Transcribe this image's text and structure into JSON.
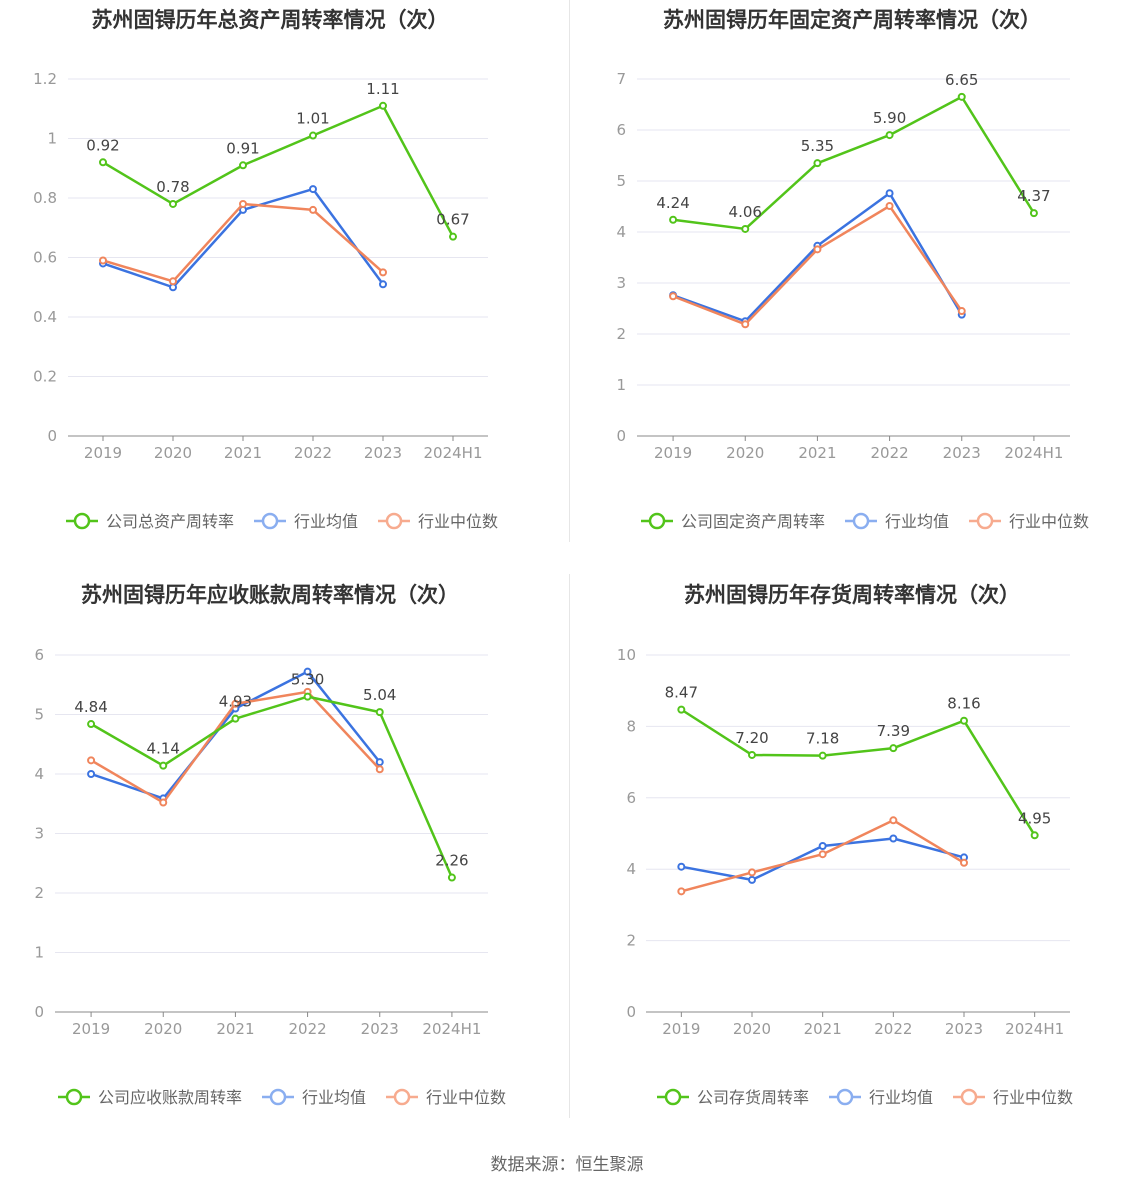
{
  "source": "数据来源：恒生聚源",
  "colors": {
    "company": "#52c41a",
    "industry_avg": "#3b73e0",
    "industry_median": "#f0855c",
    "legend_avg": "#8aaef0",
    "legend_median": "#f7ab8f"
  },
  "chart_data": [
    {
      "type": "line",
      "title": "苏州固锝历年总资产周转率情况（次）",
      "categories": [
        "2019",
        "2020",
        "2021",
        "2022",
        "2023",
        "2024H1"
      ],
      "ylim": [
        0,
        1.2
      ],
      "yticks": [
        "0",
        "0.2",
        "0.4",
        "0.6",
        "0.8",
        "1",
        "1.2"
      ],
      "ytick_values": [
        0,
        0.2,
        0.4,
        0.6,
        0.8,
        1,
        1.2
      ],
      "grid": true,
      "legend": "bottom",
      "series": [
        {
          "name": "公司总资产周转率",
          "role": "company",
          "values": [
            0.92,
            0.78,
            0.91,
            1.01,
            1.11,
            0.67
          ],
          "labels": [
            "0.92",
            "0.78",
            "0.91",
            "1.01",
            "1.11",
            "0.67"
          ]
        },
        {
          "name": "行业均值",
          "role": "avg",
          "values": [
            0.58,
            0.5,
            0.76,
            0.83,
            0.51,
            null
          ]
        },
        {
          "name": "行业中位数",
          "role": "median",
          "values": [
            0.59,
            0.52,
            0.78,
            0.76,
            0.55,
            null
          ]
        }
      ]
    },
    {
      "type": "line",
      "title": "苏州固锝历年固定资产周转率情况（次）",
      "categories": [
        "2019",
        "2020",
        "2021",
        "2022",
        "2023",
        "2024H1"
      ],
      "ylim": [
        0,
        7
      ],
      "yticks": [
        "0",
        "1",
        "2",
        "3",
        "4",
        "5",
        "6",
        "7"
      ],
      "ytick_values": [
        0,
        1,
        2,
        3,
        4,
        5,
        6,
        7
      ],
      "grid": true,
      "legend": "bottom",
      "series": [
        {
          "name": "公司固定资产周转率",
          "role": "company",
          "values": [
            4.24,
            4.06,
            5.35,
            5.9,
            6.65,
            4.37
          ],
          "labels": [
            "4.24",
            "4.06",
            "5.35",
            "5.90",
            "6.65",
            "4.37"
          ]
        },
        {
          "name": "行业均值",
          "role": "avg",
          "values": [
            2.76,
            2.25,
            3.73,
            4.76,
            2.38,
            null
          ]
        },
        {
          "name": "行业中位数",
          "role": "median",
          "values": [
            2.74,
            2.19,
            3.66,
            4.51,
            2.45,
            null
          ]
        }
      ]
    },
    {
      "type": "line",
      "title": "苏州固锝历年应收账款周转率情况（次）",
      "categories": [
        "2019",
        "2020",
        "2021",
        "2022",
        "2023",
        "2024H1"
      ],
      "ylim": [
        0,
        6
      ],
      "yticks": [
        "0",
        "1",
        "2",
        "3",
        "4",
        "5",
        "6"
      ],
      "ytick_values": [
        0,
        1,
        2,
        3,
        4,
        5,
        6
      ],
      "grid": true,
      "legend": "bottom",
      "series": [
        {
          "name": "公司应收账款周转率",
          "role": "company",
          "values": [
            4.84,
            4.14,
            4.93,
            5.3,
            5.04,
            2.26
          ],
          "labels": [
            "4.84",
            "4.14",
            "4.93",
            "5.30",
            "5.04",
            "2.26"
          ]
        },
        {
          "name": "行业均值",
          "role": "avg",
          "values": [
            4.0,
            3.59,
            5.1,
            5.72,
            4.2,
            null
          ]
        },
        {
          "name": "行业中位数",
          "role": "median",
          "values": [
            4.23,
            3.52,
            5.18,
            5.38,
            4.08,
            null
          ]
        }
      ]
    },
    {
      "type": "line",
      "title": "苏州固锝历年存货周转率情况（次）",
      "categories": [
        "2019",
        "2020",
        "2021",
        "2022",
        "2023",
        "2024H1"
      ],
      "ylim": [
        0,
        10
      ],
      "yticks": [
        "0",
        "2",
        "4",
        "6",
        "8",
        "10"
      ],
      "ytick_values": [
        0,
        2,
        4,
        6,
        8,
        10
      ],
      "grid": true,
      "legend": "bottom",
      "series": [
        {
          "name": "公司存货周转率",
          "role": "company",
          "values": [
            8.47,
            7.2,
            7.18,
            7.39,
            8.16,
            4.95
          ],
          "labels": [
            "8.47",
            "7.20",
            "7.18",
            "7.39",
            "8.16",
            "4.95"
          ]
        },
        {
          "name": "行业均值",
          "role": "avg",
          "values": [
            4.07,
            3.7,
            4.65,
            4.86,
            4.33,
            null
          ]
        },
        {
          "name": "行业中位数",
          "role": "median",
          "values": [
            3.38,
            3.91,
            4.42,
            5.37,
            4.18,
            null
          ]
        }
      ]
    }
  ]
}
